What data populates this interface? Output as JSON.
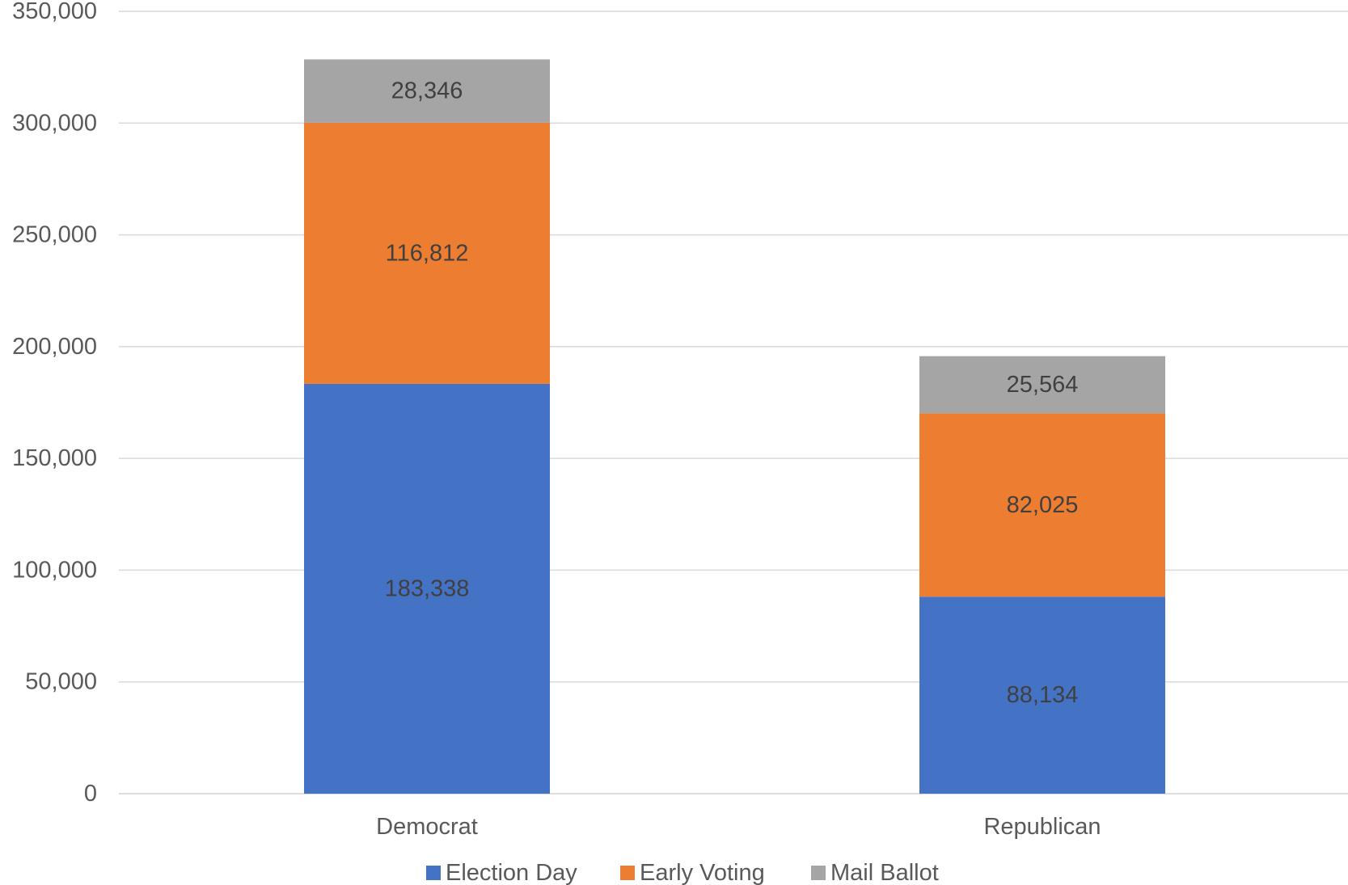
{
  "chart_data": {
    "type": "bar",
    "stacked": true,
    "categories": [
      "Democrat",
      "Republican"
    ],
    "series": [
      {
        "name": "Election Day",
        "values": [
          183338,
          88134
        ],
        "color": "#4472C4"
      },
      {
        "name": "Early Voting",
        "values": [
          116812,
          82025
        ],
        "color": "#ED7D31"
      },
      {
        "name": "Mail Ballot",
        "values": [
          28346,
          25564
        ],
        "color": "#A5A5A5"
      }
    ],
    "data_labels": [
      [
        "183,338",
        "88,134"
      ],
      [
        "116,812",
        "82,025"
      ],
      [
        "28,346",
        "25,564"
      ]
    ],
    "y_ticks": [
      0,
      50000,
      100000,
      150000,
      200000,
      250000,
      300000,
      350000
    ],
    "y_tick_labels": [
      "0",
      "50,000",
      "100,000",
      "150,000",
      "200,000",
      "250,000",
      "300,000",
      "350,000"
    ],
    "ylim": [
      0,
      350000
    ],
    "grid": true,
    "legend_position": "bottom"
  }
}
